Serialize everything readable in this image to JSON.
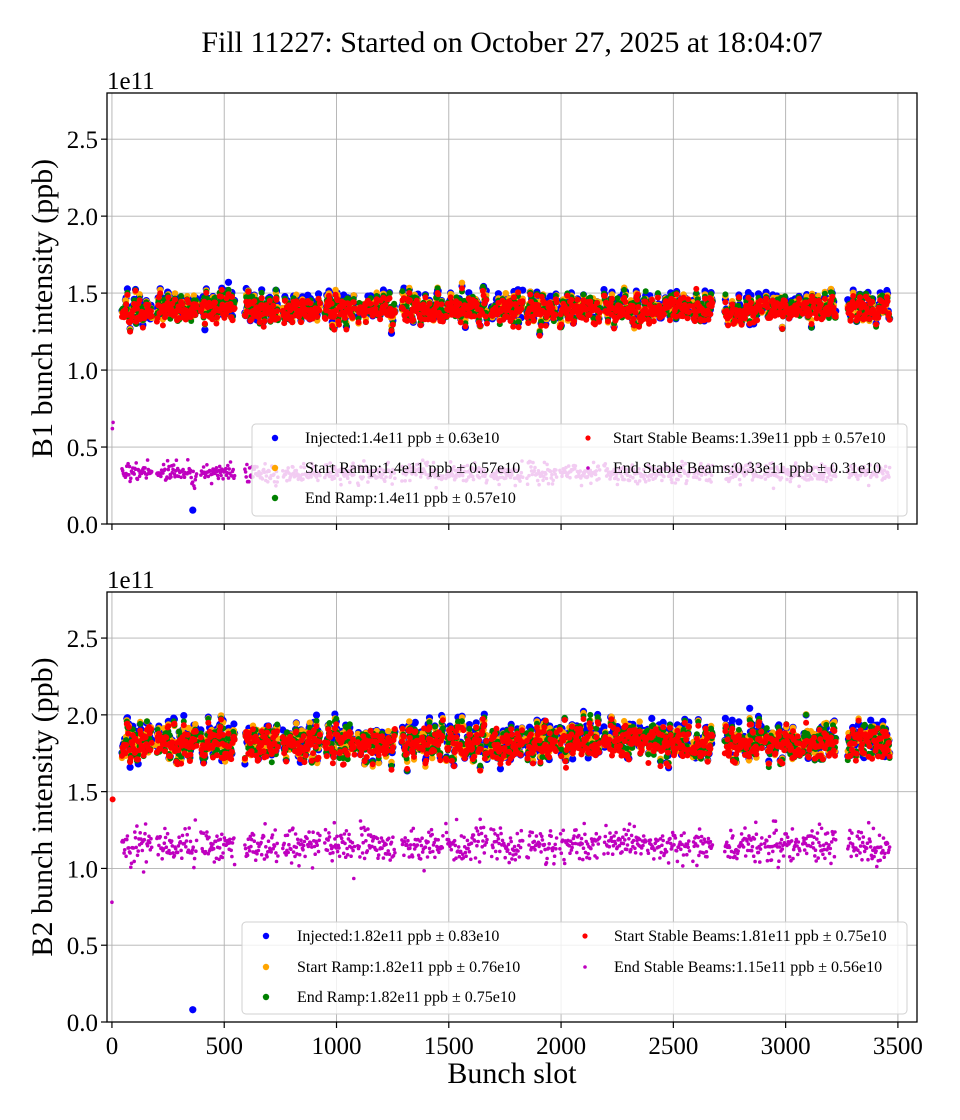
{
  "chart_data": [
    {
      "type": "scatter",
      "title": "Fill 11227: Started on October 27, 2025 at 18:04:07",
      "xlabel": "",
      "ylabel": "B1 bunch intensity (ppb)",
      "y_offset_label": "1e11",
      "xlim": [
        -22,
        3585
      ],
      "ylim": [
        0,
        2.8
      ],
      "xticks": [
        0,
        500,
        1000,
        1500,
        2000,
        2500,
        3000,
        3500
      ],
      "yticks": [
        "0.0",
        "0.5",
        "1.0",
        "1.5",
        "2.0",
        "2.5"
      ],
      "grid": true,
      "legend_position": "lower-right",
      "filled_slot_ranges": [
        [
          0,
          10
        ],
        [
          45,
          178
        ],
        [
          200,
          378
        ],
        [
          396,
          548
        ],
        [
          592,
          739
        ],
        [
          761,
          926
        ],
        [
          948,
          1082
        ],
        [
          1095,
          1260
        ],
        [
          1291,
          1474
        ],
        [
          1487,
          1670
        ],
        [
          1688,
          1830
        ],
        [
          1848,
          1981
        ],
        [
          1995,
          2173
        ],
        [
          2191,
          2378
        ],
        [
          2386,
          2573
        ],
        [
          2587,
          2676
        ],
        [
          2729,
          2894
        ],
        [
          2907,
          3063
        ],
        [
          3076,
          3224
        ],
        [
          3277,
          3464
        ]
      ],
      "series": [
        {
          "name": "Injected",
          "label": "Injected:1.4e11 ppb ± 0.63e10",
          "color": "#0000ff",
          "mean": 1.4,
          "std": 0.063
        },
        {
          "name": "Start Ramp",
          "label": "Start Ramp:1.4e11 ppb ± 0.57e10",
          "color": "#ffa500",
          "mean": 1.4,
          "std": 0.057
        },
        {
          "name": "End Ramp",
          "label": "End Ramp:1.4e11 ppb ± 0.57e10",
          "color": "#008000",
          "mean": 1.4,
          "std": 0.057
        },
        {
          "name": "Start Stable Beams",
          "label": "Start Stable Beams:1.39e11 ppb ± 0.57e10",
          "color": "#ff0000",
          "mean": 1.39,
          "std": 0.057
        },
        {
          "name": "End Stable Beams",
          "label": "End Stable Beams:0.33e11 ppb ± 0.31e10",
          "color": "#bf00bf",
          "mean": 0.33,
          "std": 0.031
        }
      ],
      "special_points": [
        {
          "series": "Injected",
          "x": 360,
          "y": 0.09
        },
        {
          "series": "End Stable Beams",
          "x": 2,
          "y": 0.62
        },
        {
          "series": "End Stable Beams",
          "x": 5,
          "y": 0.66
        }
      ]
    },
    {
      "type": "scatter",
      "xlabel": "Bunch slot",
      "ylabel": "B2 bunch intensity (ppb)",
      "y_offset_label": "1e11",
      "xlim": [
        -22,
        3585
      ],
      "ylim": [
        0,
        2.8
      ],
      "xticks": [
        0,
        500,
        1000,
        1500,
        2000,
        2500,
        3000,
        3500
      ],
      "xticklabels": [
        "0",
        "500",
        "1000",
        "1500",
        "2000",
        "2500",
        "3000",
        "3500"
      ],
      "yticks": [
        "0.0",
        "0.5",
        "1.0",
        "1.5",
        "2.0",
        "2.5"
      ],
      "grid": true,
      "legend_position": "lower-right",
      "filled_slot_ranges": [
        [
          0,
          10
        ],
        [
          45,
          178
        ],
        [
          200,
          378
        ],
        [
          396,
          548
        ],
        [
          592,
          739
        ],
        [
          761,
          926
        ],
        [
          948,
          1082
        ],
        [
          1095,
          1260
        ],
        [
          1291,
          1474
        ],
        [
          1487,
          1670
        ],
        [
          1688,
          1830
        ],
        [
          1848,
          1981
        ],
        [
          1995,
          2173
        ],
        [
          2191,
          2378
        ],
        [
          2386,
          2573
        ],
        [
          2587,
          2676
        ],
        [
          2729,
          2894
        ],
        [
          2907,
          3063
        ],
        [
          3076,
          3224
        ],
        [
          3277,
          3464
        ]
      ],
      "series": [
        {
          "name": "Injected",
          "label": "Injected:1.82e11 ppb ± 0.83e10",
          "color": "#0000ff",
          "mean": 1.82,
          "std": 0.083
        },
        {
          "name": "Start Ramp",
          "label": "Start Ramp:1.82e11 ppb ± 0.76e10",
          "color": "#ffa500",
          "mean": 1.82,
          "std": 0.076
        },
        {
          "name": "End Ramp",
          "label": "End Ramp:1.82e11 ppb ± 0.75e10",
          "color": "#008000",
          "mean": 1.82,
          "std": 0.075
        },
        {
          "name": "Start Stable Beams",
          "label": "Start Stable Beams:1.81e11 ppb ± 0.75e10",
          "color": "#ff0000",
          "mean": 1.81,
          "std": 0.075
        },
        {
          "name": "End Stable Beams",
          "label": "End Stable Beams:1.15e11 ppb ± 0.56e10",
          "color": "#bf00bf",
          "mean": 1.15,
          "std": 0.056
        }
      ],
      "special_points": [
        {
          "series": "Injected",
          "x": 360,
          "y": 0.08
        },
        {
          "series": "End Stable Beams",
          "x": 0,
          "y": 0.78
        },
        {
          "series": "Start Stable Beams",
          "x": 3,
          "y": 1.45
        }
      ]
    }
  ]
}
